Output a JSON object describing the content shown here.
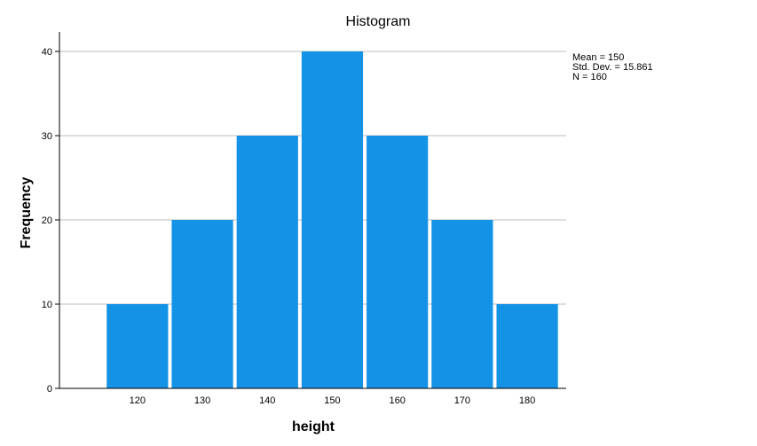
{
  "chart_data": {
    "type": "bar",
    "title": "Histogram",
    "xlabel": "height",
    "ylabel": "Frequency",
    "categories": [
      "120",
      "130",
      "140",
      "150",
      "160",
      "170",
      "180"
    ],
    "bin_centers": [
      120,
      130,
      140,
      150,
      160,
      170,
      180
    ],
    "bin_width": 10,
    "values": [
      10,
      20,
      30,
      40,
      30,
      20,
      10
    ],
    "xlim": [
      108,
      186
    ],
    "ylim": [
      0,
      40
    ],
    "yticks": [
      0,
      10,
      20,
      30,
      40
    ],
    "grid": "horizontal",
    "bar_color": "#1492e6",
    "stats": {
      "mean": "Mean = 150",
      "std_dev": "Std. Dev. = 15.861",
      "n": "N = 160"
    }
  }
}
